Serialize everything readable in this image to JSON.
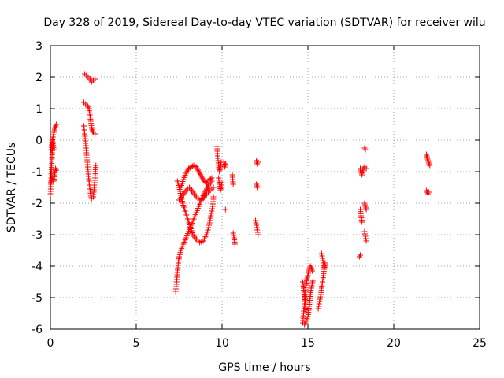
{
  "chart_data": {
    "type": "scatter",
    "title": "Day 328 of 2019, Sidereal Day-to-day VTEC variation (SDTVAR) for receiver wilu",
    "xlabel": "GPS time / hours",
    "ylabel": "SDTVAR / TECUs",
    "xlim": [
      0,
      25
    ],
    "ylim": [
      -6,
      3
    ],
    "xticks": [
      "0",
      "5",
      "10",
      "15",
      "20",
      "25"
    ],
    "yticks": [
      "-6",
      "-5",
      "-4",
      "-3",
      "-2",
      "-1",
      "0",
      "1",
      "2",
      "3"
    ],
    "grid": true,
    "marker": "+",
    "color": "#ff0000",
    "series": [
      {
        "name": "SDTVAR",
        "segments": [
          [
            [
              0.0,
              -1.7
            ],
            [
              0.03,
              -1.4
            ],
            [
              0.06,
              -1.0
            ],
            [
              0.09,
              -0.6
            ],
            [
              0.12,
              -0.2
            ],
            [
              0.15,
              0.1
            ],
            [
              0.2,
              0.25
            ],
            [
              0.25,
              0.35
            ],
            [
              0.3,
              0.45
            ],
            [
              0.35,
              0.5
            ]
          ],
          [
            [
              0.05,
              -1.3
            ],
            [
              0.1,
              -1.2
            ],
            [
              0.15,
              -1.25
            ],
            [
              0.2,
              -1.3
            ],
            [
              0.25,
              -1.1
            ],
            [
              0.3,
              -0.9
            ],
            [
              0.35,
              -0.95
            ]
          ],
          [
            [
              0.05,
              -0.3
            ],
            [
              0.1,
              0.0
            ],
            [
              0.15,
              -0.1
            ],
            [
              0.2,
              -0.3
            ]
          ],
          [
            [
              2.0,
              2.1
            ],
            [
              2.1,
              2.05
            ],
            [
              2.2,
              2.0
            ],
            [
              2.3,
              1.95
            ],
            [
              2.4,
              1.85
            ],
            [
              2.5,
              1.9
            ],
            [
              2.6,
              1.95
            ]
          ],
          [
            [
              1.95,
              1.2
            ],
            [
              2.05,
              1.15
            ],
            [
              2.15,
              1.1
            ],
            [
              2.25,
              1.0
            ],
            [
              2.3,
              0.8
            ],
            [
              2.35,
              0.6
            ],
            [
              2.4,
              0.4
            ],
            [
              2.45,
              0.3
            ],
            [
              2.5,
              0.25
            ],
            [
              2.6,
              0.2
            ]
          ],
          [
            [
              1.95,
              0.45
            ],
            [
              2.0,
              0.2
            ],
            [
              2.05,
              -0.1
            ],
            [
              2.1,
              -0.4
            ],
            [
              2.15,
              -0.7
            ],
            [
              2.2,
              -1.0
            ],
            [
              2.25,
              -1.3
            ],
            [
              2.3,
              -1.55
            ],
            [
              2.35,
              -1.75
            ],
            [
              2.4,
              -1.85
            ],
            [
              2.5,
              -1.8
            ],
            [
              2.55,
              -1.5
            ],
            [
              2.6,
              -1.2
            ],
            [
              2.65,
              -0.8
            ]
          ],
          [
            [
              7.3,
              -4.8
            ],
            [
              7.35,
              -4.5
            ],
            [
              7.4,
              -4.2
            ],
            [
              7.45,
              -3.9
            ],
            [
              7.5,
              -3.7
            ],
            [
              7.6,
              -3.5
            ],
            [
              7.75,
              -3.3
            ],
            [
              7.9,
              -3.1
            ],
            [
              8.05,
              -2.9
            ],
            [
              8.2,
              -2.7
            ],
            [
              8.35,
              -2.5
            ],
            [
              8.5,
              -2.3
            ],
            [
              8.65,
              -2.1
            ],
            [
              8.8,
              -1.9
            ],
            [
              8.95,
              -1.7
            ],
            [
              9.1,
              -1.55
            ],
            [
              9.25,
              -1.4
            ],
            [
              9.4,
              -1.3
            ]
          ],
          [
            [
              7.4,
              -1.3
            ],
            [
              7.5,
              -1.5
            ],
            [
              7.6,
              -1.75
            ],
            [
              7.7,
              -2.0
            ],
            [
              7.85,
              -2.25
            ],
            [
              8.0,
              -2.5
            ],
            [
              8.15,
              -2.75
            ],
            [
              8.3,
              -3.0
            ],
            [
              8.5,
              -3.15
            ],
            [
              8.7,
              -3.25
            ],
            [
              8.9,
              -3.2
            ],
            [
              9.1,
              -3.0
            ],
            [
              9.25,
              -2.7
            ],
            [
              9.35,
              -2.4
            ],
            [
              9.45,
              -2.1
            ],
            [
              9.5,
              -1.8
            ]
          ],
          [
            [
              7.5,
              -1.9
            ],
            [
              7.7,
              -1.75
            ],
            [
              7.9,
              -1.6
            ],
            [
              8.1,
              -1.5
            ],
            [
              8.3,
              -1.65
            ],
            [
              8.5,
              -1.8
            ],
            [
              8.7,
              -1.9
            ],
            [
              8.9,
              -1.85
            ],
            [
              9.1,
              -1.7
            ],
            [
              9.3,
              -1.6
            ],
            [
              9.5,
              -1.5
            ]
          ],
          [
            [
              7.6,
              -1.5
            ],
            [
              7.75,
              -1.25
            ],
            [
              7.9,
              -1.05
            ],
            [
              8.05,
              -0.9
            ],
            [
              8.2,
              -0.85
            ],
            [
              8.35,
              -0.8
            ],
            [
              8.5,
              -0.85
            ],
            [
              8.65,
              -1.0
            ],
            [
              8.8,
              -1.15
            ],
            [
              8.95,
              -1.3
            ],
            [
              9.1,
              -1.35
            ],
            [
              9.25,
              -1.25
            ],
            [
              9.4,
              -1.2
            ]
          ],
          [
            [
              9.7,
              -0.2
            ],
            [
              9.75,
              -0.5
            ],
            [
              9.8,
              -0.8
            ],
            [
              9.85,
              -1.0
            ],
            [
              9.9,
              -0.9
            ],
            [
              9.95,
              -0.7
            ]
          ],
          [
            [
              9.8,
              -1.2
            ],
            [
              9.85,
              -1.4
            ],
            [
              9.9,
              -1.6
            ],
            [
              9.95,
              -1.5
            ],
            [
              10.0,
              -1.35
            ]
          ],
          [
            [
              10.1,
              -0.7
            ],
            [
              10.15,
              -0.85
            ],
            [
              10.2,
              -0.75
            ]
          ],
          [
            [
              10.2,
              -2.2
            ]
          ],
          [
            [
              10.6,
              -1.1
            ],
            [
              10.65,
              -1.4
            ]
          ],
          [
            [
              10.65,
              -2.95
            ],
            [
              10.7,
              -3.1
            ],
            [
              10.75,
              -3.3
            ]
          ],
          [
            [
              12.0,
              -0.65
            ],
            [
              12.05,
              -0.75
            ],
            [
              12.1,
              -0.7
            ]
          ],
          [
            [
              12.0,
              -1.4
            ],
            [
              12.05,
              -1.5
            ]
          ],
          [
            [
              11.95,
              -2.55
            ],
            [
              12.0,
              -2.7
            ],
            [
              12.05,
              -2.85
            ],
            [
              12.1,
              -3.0
            ]
          ],
          [
            [
              14.7,
              -5.8
            ],
            [
              14.75,
              -5.5
            ],
            [
              14.8,
              -5.2
            ],
            [
              14.85,
              -4.9
            ],
            [
              14.9,
              -4.6
            ],
            [
              14.95,
              -4.4
            ],
            [
              15.0,
              -4.3
            ],
            [
              15.05,
              -4.15
            ],
            [
              15.1,
              -4.05
            ],
            [
              15.15,
              -4.0
            ],
            [
              15.2,
              -4.05
            ],
            [
              15.25,
              -4.15
            ]
          ],
          [
            [
              14.8,
              -5.85
            ],
            [
              14.9,
              -5.75
            ],
            [
              15.0,
              -5.6
            ],
            [
              15.05,
              -5.4
            ],
            [
              15.1,
              -5.15
            ],
            [
              15.15,
              -4.9
            ],
            [
              15.2,
              -4.7
            ],
            [
              15.25,
              -4.55
            ],
            [
              15.3,
              -4.45
            ]
          ],
          [
            [
              14.7,
              -4.5
            ],
            [
              14.75,
              -4.7
            ],
            [
              14.8,
              -4.95
            ],
            [
              14.85,
              -5.2
            ],
            [
              14.9,
              -5.45
            ]
          ],
          [
            [
              15.6,
              -5.35
            ],
            [
              15.65,
              -5.2
            ],
            [
              15.7,
              -5.05
            ],
            [
              15.75,
              -4.9
            ],
            [
              15.8,
              -4.7
            ],
            [
              15.85,
              -4.5
            ],
            [
              15.9,
              -4.3
            ],
            [
              15.95,
              -4.1
            ],
            [
              16.0,
              -3.9
            ]
          ],
          [
            [
              15.8,
              -3.6
            ],
            [
              15.85,
              -3.75
            ],
            [
              15.9,
              -3.9
            ],
            [
              15.95,
              -4.05
            ],
            [
              16.0,
              -3.95
            ]
          ],
          [
            [
              18.0,
              -3.7
            ],
            [
              18.05,
              -3.65
            ]
          ],
          [
            [
              18.05,
              -2.2
            ],
            [
              18.1,
              -2.4
            ],
            [
              18.15,
              -2.6
            ]
          ],
          [
            [
              18.05,
              -0.9
            ],
            [
              18.1,
              -1.0
            ],
            [
              18.15,
              -1.1
            ],
            [
              18.2,
              -0.95
            ],
            [
              18.3,
              -0.85
            ],
            [
              18.4,
              -0.9
            ]
          ],
          [
            [
              18.3,
              -0.25
            ],
            [
              18.35,
              -0.3
            ]
          ],
          [
            [
              18.3,
              -2.0
            ],
            [
              18.35,
              -2.1
            ],
            [
              18.4,
              -2.2
            ]
          ],
          [
            [
              18.3,
              -2.9
            ],
            [
              18.35,
              -3.05
            ],
            [
              18.4,
              -3.2
            ]
          ],
          [
            [
              21.9,
              -0.45
            ],
            [
              21.95,
              -0.55
            ],
            [
              22.0,
              -0.65
            ],
            [
              22.05,
              -0.75
            ],
            [
              22.1,
              -0.8
            ]
          ],
          [
            [
              21.9,
              -1.6
            ],
            [
              21.95,
              -1.65
            ],
            [
              22.0,
              -1.7
            ],
            [
              22.05,
              -1.65
            ]
          ]
        ]
      }
    ]
  }
}
